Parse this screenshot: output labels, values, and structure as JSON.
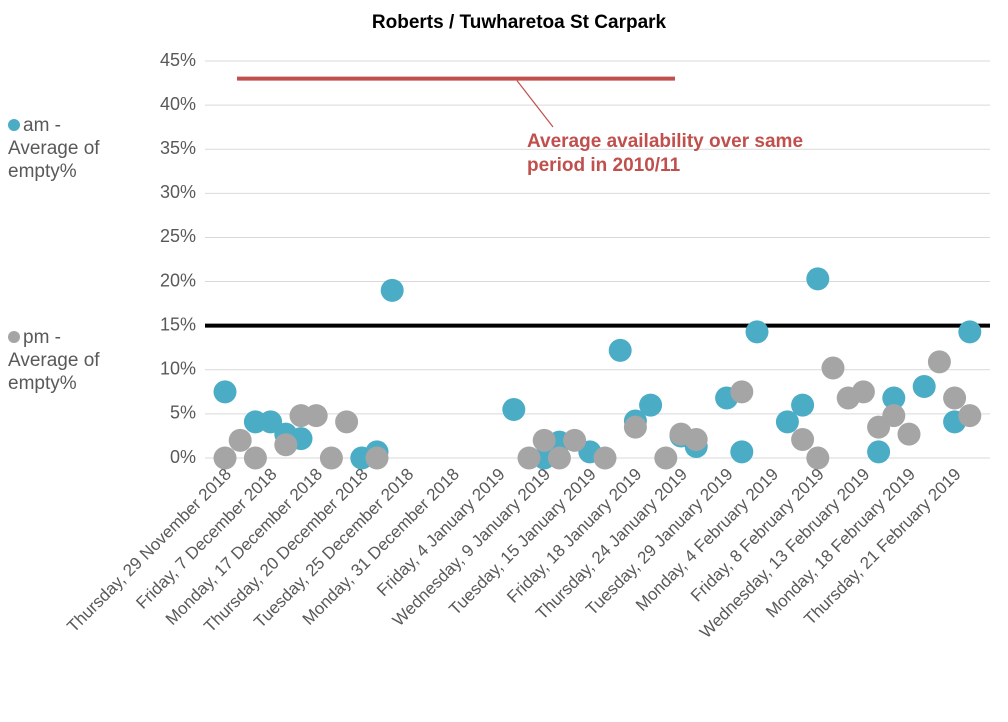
{
  "chart_data": {
    "type": "scatter",
    "title": "Roberts / Tuwharetoa St Carpark",
    "categories": [
      "Thursday, 29 November 2018",
      null,
      null,
      "Friday, 7 December 2018",
      null,
      null,
      "Monday, 17 December 2018",
      null,
      null,
      "Thursday, 20 December 2018",
      null,
      null,
      "Tuesday, 25 December 2018",
      null,
      null,
      "Monday, 31 December 2018",
      null,
      null,
      "Friday, 4 January 2019",
      null,
      null,
      "Wednesday, 9 January 2019",
      null,
      null,
      "Tuesday, 15 January 2019",
      null,
      null,
      "Friday, 18 January 2019",
      null,
      null,
      "Thursday, 24 January 2019",
      null,
      null,
      "Tuesday, 29 January 2019",
      null,
      null,
      "Monday, 4 February 2019",
      null,
      null,
      "Friday, 8 February 2019",
      null,
      null,
      "Wednesday, 13 February 2019",
      null,
      null,
      "Monday, 18 February 2019",
      null,
      null,
      "Thursday, 21 February 2019",
      null
    ],
    "series": [
      {
        "name": "am - Average of empty%",
        "color": "#4bacc6",
        "values": [
          7.5,
          null,
          4.1,
          4.1,
          2.7,
          2.2,
          null,
          null,
          null,
          0,
          0.7,
          19,
          null,
          null,
          null,
          null,
          null,
          null,
          null,
          5.5,
          null,
          0,
          1.8,
          null,
          0.7,
          null,
          12.2,
          4.2,
          6,
          null,
          2.5,
          1.3,
          null,
          6.8,
          0.7,
          14.3,
          null,
          4.1,
          6,
          20.3,
          null,
          null,
          null,
          0.7,
          6.8,
          null,
          8.1,
          null,
          4.1,
          14.3
        ]
      },
      {
        "name": "pm - Average of empty%",
        "color": "#a5a5a5",
        "values": [
          0,
          2,
          0,
          null,
          1.5,
          4.8,
          4.8,
          0,
          4.1,
          null,
          0,
          null,
          null,
          null,
          null,
          null,
          null,
          null,
          null,
          null,
          0,
          2,
          0,
          2,
          null,
          0,
          null,
          3.5,
          null,
          0,
          2.7,
          2.1,
          null,
          null,
          7.5,
          null,
          null,
          null,
          2.1,
          0,
          10.2,
          6.8,
          7.5,
          3.5,
          4.8,
          2.7,
          null,
          10.9,
          6.8,
          4.8
        ]
      }
    ],
    "ylim": [
      0,
      45
    ],
    "yticks": [
      {
        "value": 0,
        "label": "0%"
      },
      {
        "value": 5,
        "label": "5%"
      },
      {
        "value": 10,
        "label": "10%"
      },
      {
        "value": 15,
        "label": "15%"
      },
      {
        "value": 20,
        "label": "20%"
      },
      {
        "value": 25,
        "label": "25%"
      },
      {
        "value": 30,
        "label": "30%"
      },
      {
        "value": 35,
        "label": "35%"
      },
      {
        "value": 40,
        "label": "40%"
      },
      {
        "value": 45,
        "label": "45%"
      }
    ],
    "grid": true,
    "legend": "left",
    "reference_lines": [
      {
        "value": 15,
        "color": "#000000"
      },
      {
        "value": 43,
        "color": "#c0504d",
        "label": "Average availability over same period in 2010/11"
      }
    ]
  }
}
